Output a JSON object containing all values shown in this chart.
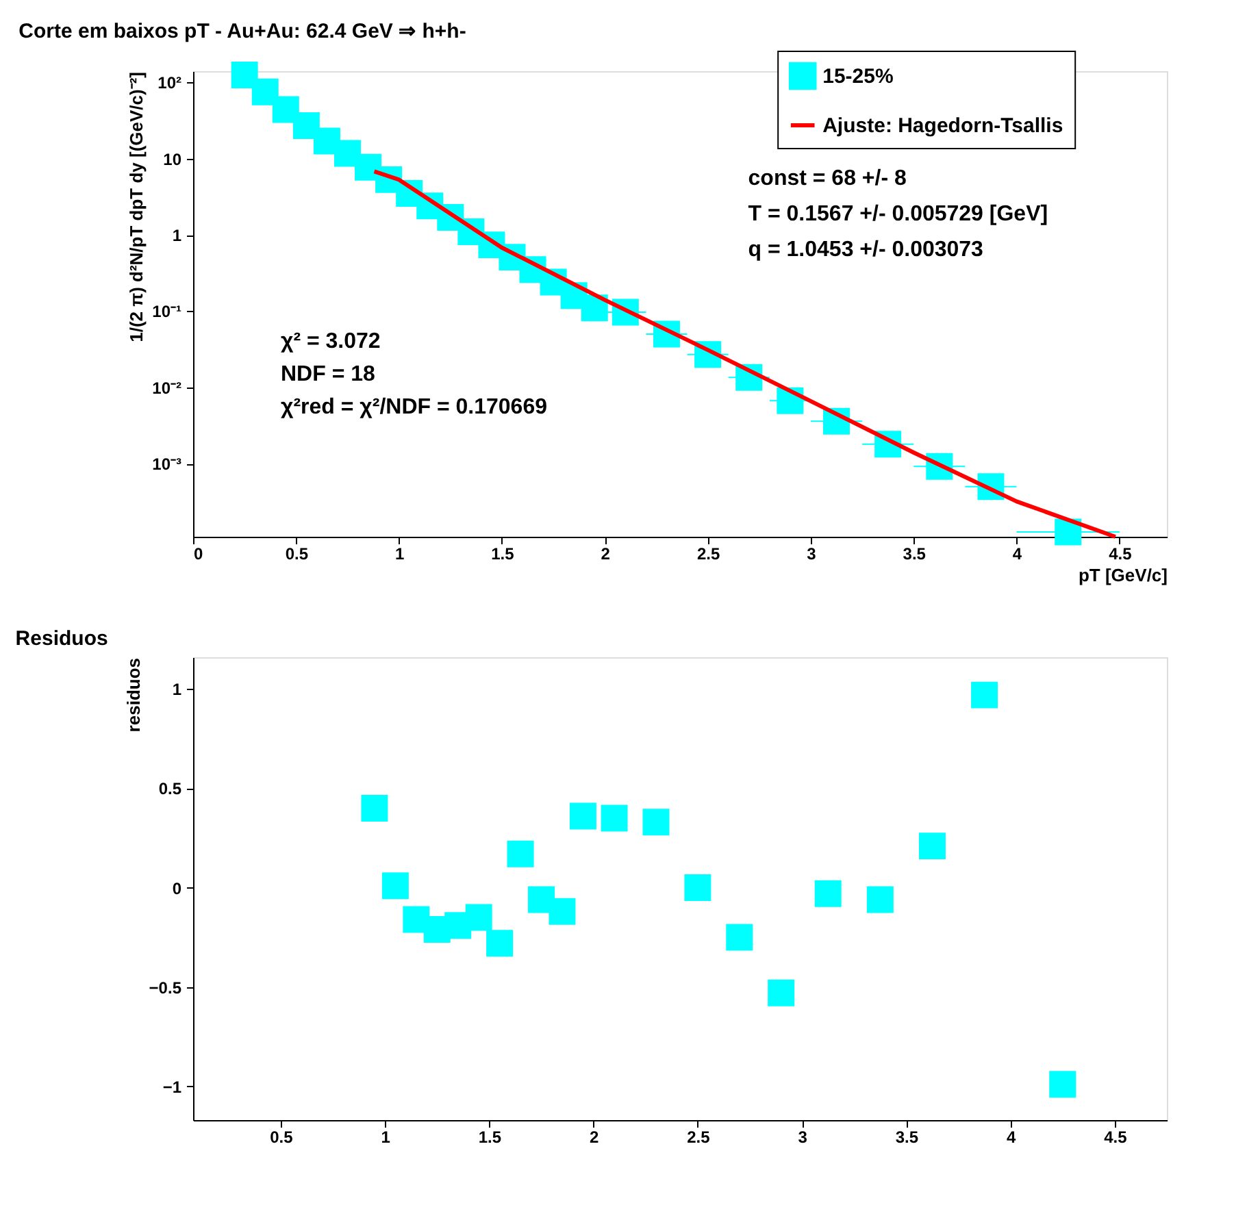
{
  "chart_data": [
    {
      "type": "scatter",
      "title": "Corte em baixos pT - Au+Au: 62.4 GeV ⇒ h+h-",
      "xlabel": "pT [GeV/c]",
      "ylabel": "1/(2 π) d²N/pT dpT dy [(GeV/c)⁻²]",
      "x": [
        0.25,
        0.35,
        0.45,
        0.55,
        0.65,
        0.75,
        0.85,
        0.95,
        1.05,
        1.15,
        1.25,
        1.35,
        1.45,
        1.55,
        1.65,
        1.75,
        1.85,
        1.95,
        2.1,
        2.3,
        2.5,
        2.7,
        2.9,
        3.125,
        3.375,
        3.625,
        3.875,
        4.25
      ],
      "series": [
        {
          "name": "15-25%",
          "color": "#00ffff",
          "marker": "square",
          "values": [
            125,
            75,
            44,
            27,
            17,
            11.7,
            7.7,
            5.3,
            3.5,
            2.4,
            1.7,
            1.1,
            0.74,
            0.51,
            0.35,
            0.24,
            0.16,
            0.11,
            0.097,
            0.05,
            0.027,
            0.0135,
            0.0067,
            0.0036,
            0.0018,
            0.00092,
            0.0005,
            0.000127
          ],
          "xerrors": [
            0.05,
            0.05,
            0.05,
            0.05,
            0.05,
            0.05,
            0.05,
            0.05,
            0.05,
            0.05,
            0.05,
            0.05,
            0.05,
            0.05,
            0.05,
            0.05,
            0.05,
            0.05,
            0.1,
            0.1,
            0.1,
            0.1,
            0.1,
            0.125,
            0.125,
            0.125,
            0.125,
            0.25
          ]
        },
        {
          "name": "Ajuste: Hagedorn-Tsallis",
          "type": "line",
          "marker": "none",
          "color": "#ff0000",
          "x": [
            0.88,
            1,
            1.5,
            2,
            2.5,
            3,
            3.5,
            4,
            4.48
          ],
          "values": [
            6.8,
            5.3,
            0.68,
            0.14,
            0.031,
            0.0066,
            0.0014,
            0.00032,
            0.00011
          ]
        }
      ],
      "xlim": [
        0,
        4.73
      ],
      "ylim": [
        0.00011,
        140
      ],
      "log": true,
      "xticks": [
        0,
        0.5,
        1,
        1.5,
        2,
        2.5,
        3,
        3.5,
        4,
        4.5
      ],
      "yticks": [
        {
          "value": 0.001,
          "label": "10⁻³"
        },
        {
          "value": 0.01,
          "label": "10⁻²"
        },
        {
          "value": 0.1,
          "label": "10⁻¹"
        },
        1,
        10,
        {
          "value": 100,
          "label": "10²"
        }
      ],
      "legend": "top right",
      "annotations": [
        "const = 68 +/- 8",
        "T = 0.1567 +/- 0.005729 [GeV]",
        "q = 1.0453 +/- 0.003073",
        "χ² = 3.072",
        "NDF =  18",
        "χ²red = χ²/NDF = 0.170669"
      ]
    },
    {
      "type": "scatter",
      "title": "Residuos",
      "ylabel": "residuos",
      "x": [
        0.95,
        1.05,
        1.15,
        1.25,
        1.35,
        1.45,
        1.55,
        1.65,
        1.75,
        1.85,
        1.95,
        2.1,
        2.3,
        2.5,
        2.7,
        2.9,
        3.125,
        3.375,
        3.625,
        3.875,
        4.25
      ],
      "series": [
        {
          "color": "#00ffff",
          "values": [
            0.4,
            0.01,
            -0.16,
            -0.21,
            -0.19,
            -0.15,
            -0.28,
            0.17,
            -0.06,
            -0.12,
            0.36,
            0.35,
            0.33,
            0.0,
            -0.25,
            -0.53,
            -0.03,
            -0.06,
            0.21,
            0.97,
            -0.99
          ]
        }
      ],
      "xlim": [
        0.08,
        4.75
      ],
      "ylim": [
        -1.17,
        1.16
      ],
      "xticks": [
        0.5,
        1,
        1.5,
        2,
        2.5,
        3,
        3.5,
        4,
        4.5
      ],
      "yticks": [
        -1,
        -0.5,
        0,
        0.5,
        1
      ],
      "marker": "square"
    }
  ]
}
